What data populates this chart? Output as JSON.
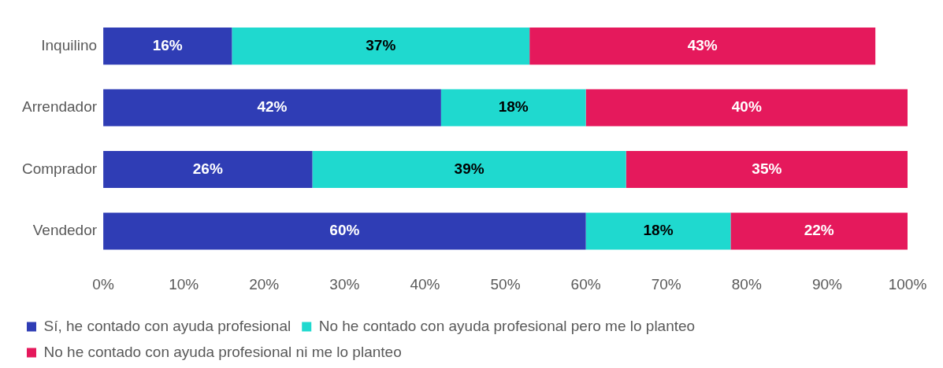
{
  "chart_data": {
    "type": "bar",
    "orientation": "horizontal",
    "stacked": true,
    "categories": [
      "Inquilino",
      "Arrendador",
      "Comprador",
      "Vendedor"
    ],
    "series": [
      {
        "name": "Sí, he contado con ayuda profesional",
        "color": "#2f3db5",
        "values": [
          16,
          42,
          26,
          60
        ],
        "value_labels": [
          "16%",
          "42%",
          "26%",
          "60%"
        ]
      },
      {
        "name": "No he contado con ayuda profesional pero me lo planteo",
        "color": "#1fd9cf",
        "values": [
          37,
          18,
          39,
          18
        ],
        "value_labels": [
          "37%",
          "18%",
          "39%",
          "18%"
        ]
      },
      {
        "name": "No he contado con ayuda profesional ni me lo planteo",
        "color": "#e5195c",
        "values": [
          43,
          40,
          35,
          22
        ],
        "value_labels": [
          "43%",
          "40%",
          "35%",
          "22%"
        ]
      }
    ],
    "xlim": [
      0,
      100
    ],
    "xticks": [
      {
        "value": 0,
        "label": "0%"
      },
      {
        "value": 10,
        "label": "10%"
      },
      {
        "value": 20,
        "label": "20%"
      },
      {
        "value": 30,
        "label": "30%"
      },
      {
        "value": 40,
        "label": "40%"
      },
      {
        "value": 50,
        "label": "50%"
      },
      {
        "value": 60,
        "label": "60%"
      },
      {
        "value": 70,
        "label": "70%"
      },
      {
        "value": 80,
        "label": "80%"
      },
      {
        "value": 90,
        "label": "90%"
      },
      {
        "value": 100,
        "label": "100%"
      }
    ],
    "grid": false,
    "legend": "bottom"
  }
}
